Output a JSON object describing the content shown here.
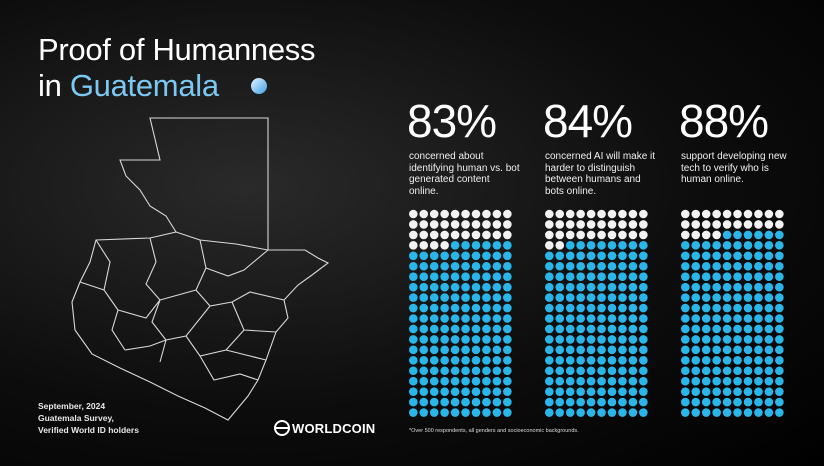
{
  "header": {
    "title_line1": "Proof of Humanness",
    "title_line2_prefix": "in",
    "title_line2_highlight": "Guatemala"
  },
  "chart_data": [
    {
      "type": "waffle",
      "values": [
        83
      ],
      "value_labels": [
        "83%"
      ],
      "caption": "concerned about identifying human vs. bot generated content online.",
      "color": "#2bb6ea",
      "rest_color": "#f2f2f2"
    },
    {
      "type": "waffle",
      "values": [
        84
      ],
      "value_labels": [
        "84%"
      ],
      "caption": "concerned AI will make it harder to distinguish between humans and bots online.",
      "color": "#2bb6ea",
      "rest_color": "#f2f2f2"
    },
    {
      "type": "waffle",
      "values": [
        88
      ],
      "value_labels": [
        "88%"
      ],
      "caption": "support developing new tech to verify who is human online.",
      "color": "#2bb6ea",
      "rest_color": "#f2f2f2"
    }
  ],
  "footer": {
    "lines": [
      "September, 2024",
      "Guatemala Survey,",
      "Verified World ID holders"
    ],
    "logo": "WORLDCOIN",
    "footnote": "*Over 500 respondents, all genders and socioeconomic backgrounds."
  }
}
